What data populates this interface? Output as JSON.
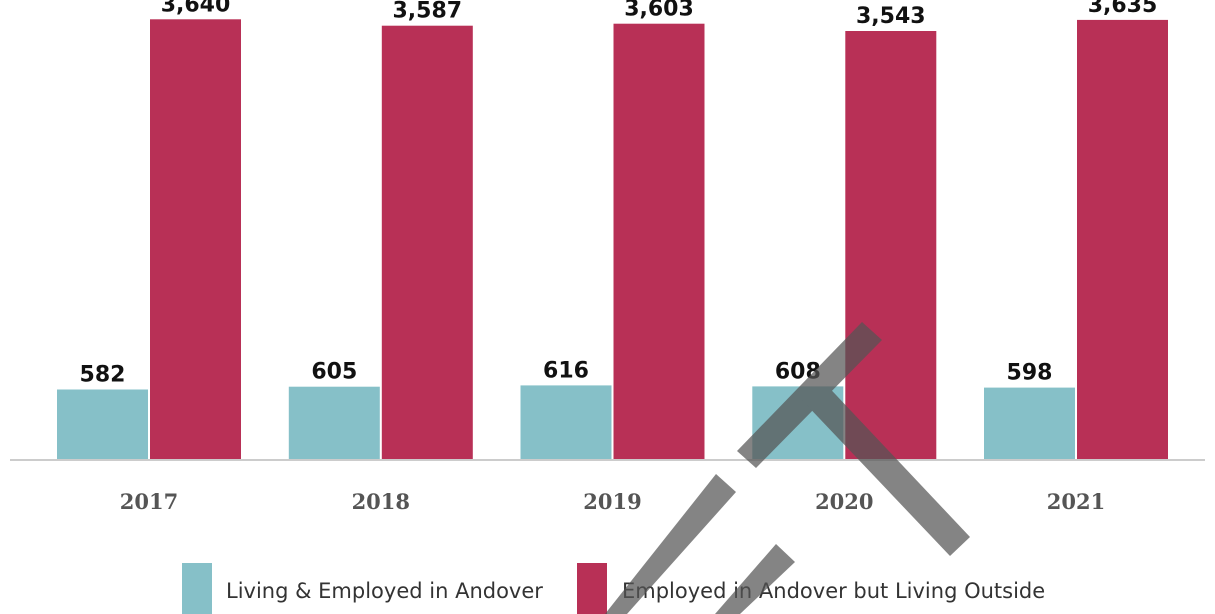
{
  "chart_data": {
    "type": "bar",
    "categories": [
      "2017",
      "2018",
      "2019",
      "2020",
      "2021"
    ],
    "series": [
      {
        "name": "Living & Employed in Andover",
        "values": [
          582,
          605,
          616,
          608,
          598
        ],
        "labels": [
          "582",
          "605",
          "616",
          "608",
          "598"
        ],
        "color": "#86c0c8"
      },
      {
        "name": "Employed in Andover but Living Outside",
        "values": [
          3640,
          3587,
          3603,
          3543,
          3635
        ],
        "labels": [
          "3,640",
          "3,587",
          "3,603",
          "3,543",
          "3,635"
        ],
        "color": "#b83056"
      }
    ],
    "ylim": [
      0,
      3700
    ],
    "grid": false,
    "legend": "bottom",
    "axis_color": "#cccccc",
    "watermark": {
      "shape": "chevron",
      "color": "#555555"
    }
  }
}
